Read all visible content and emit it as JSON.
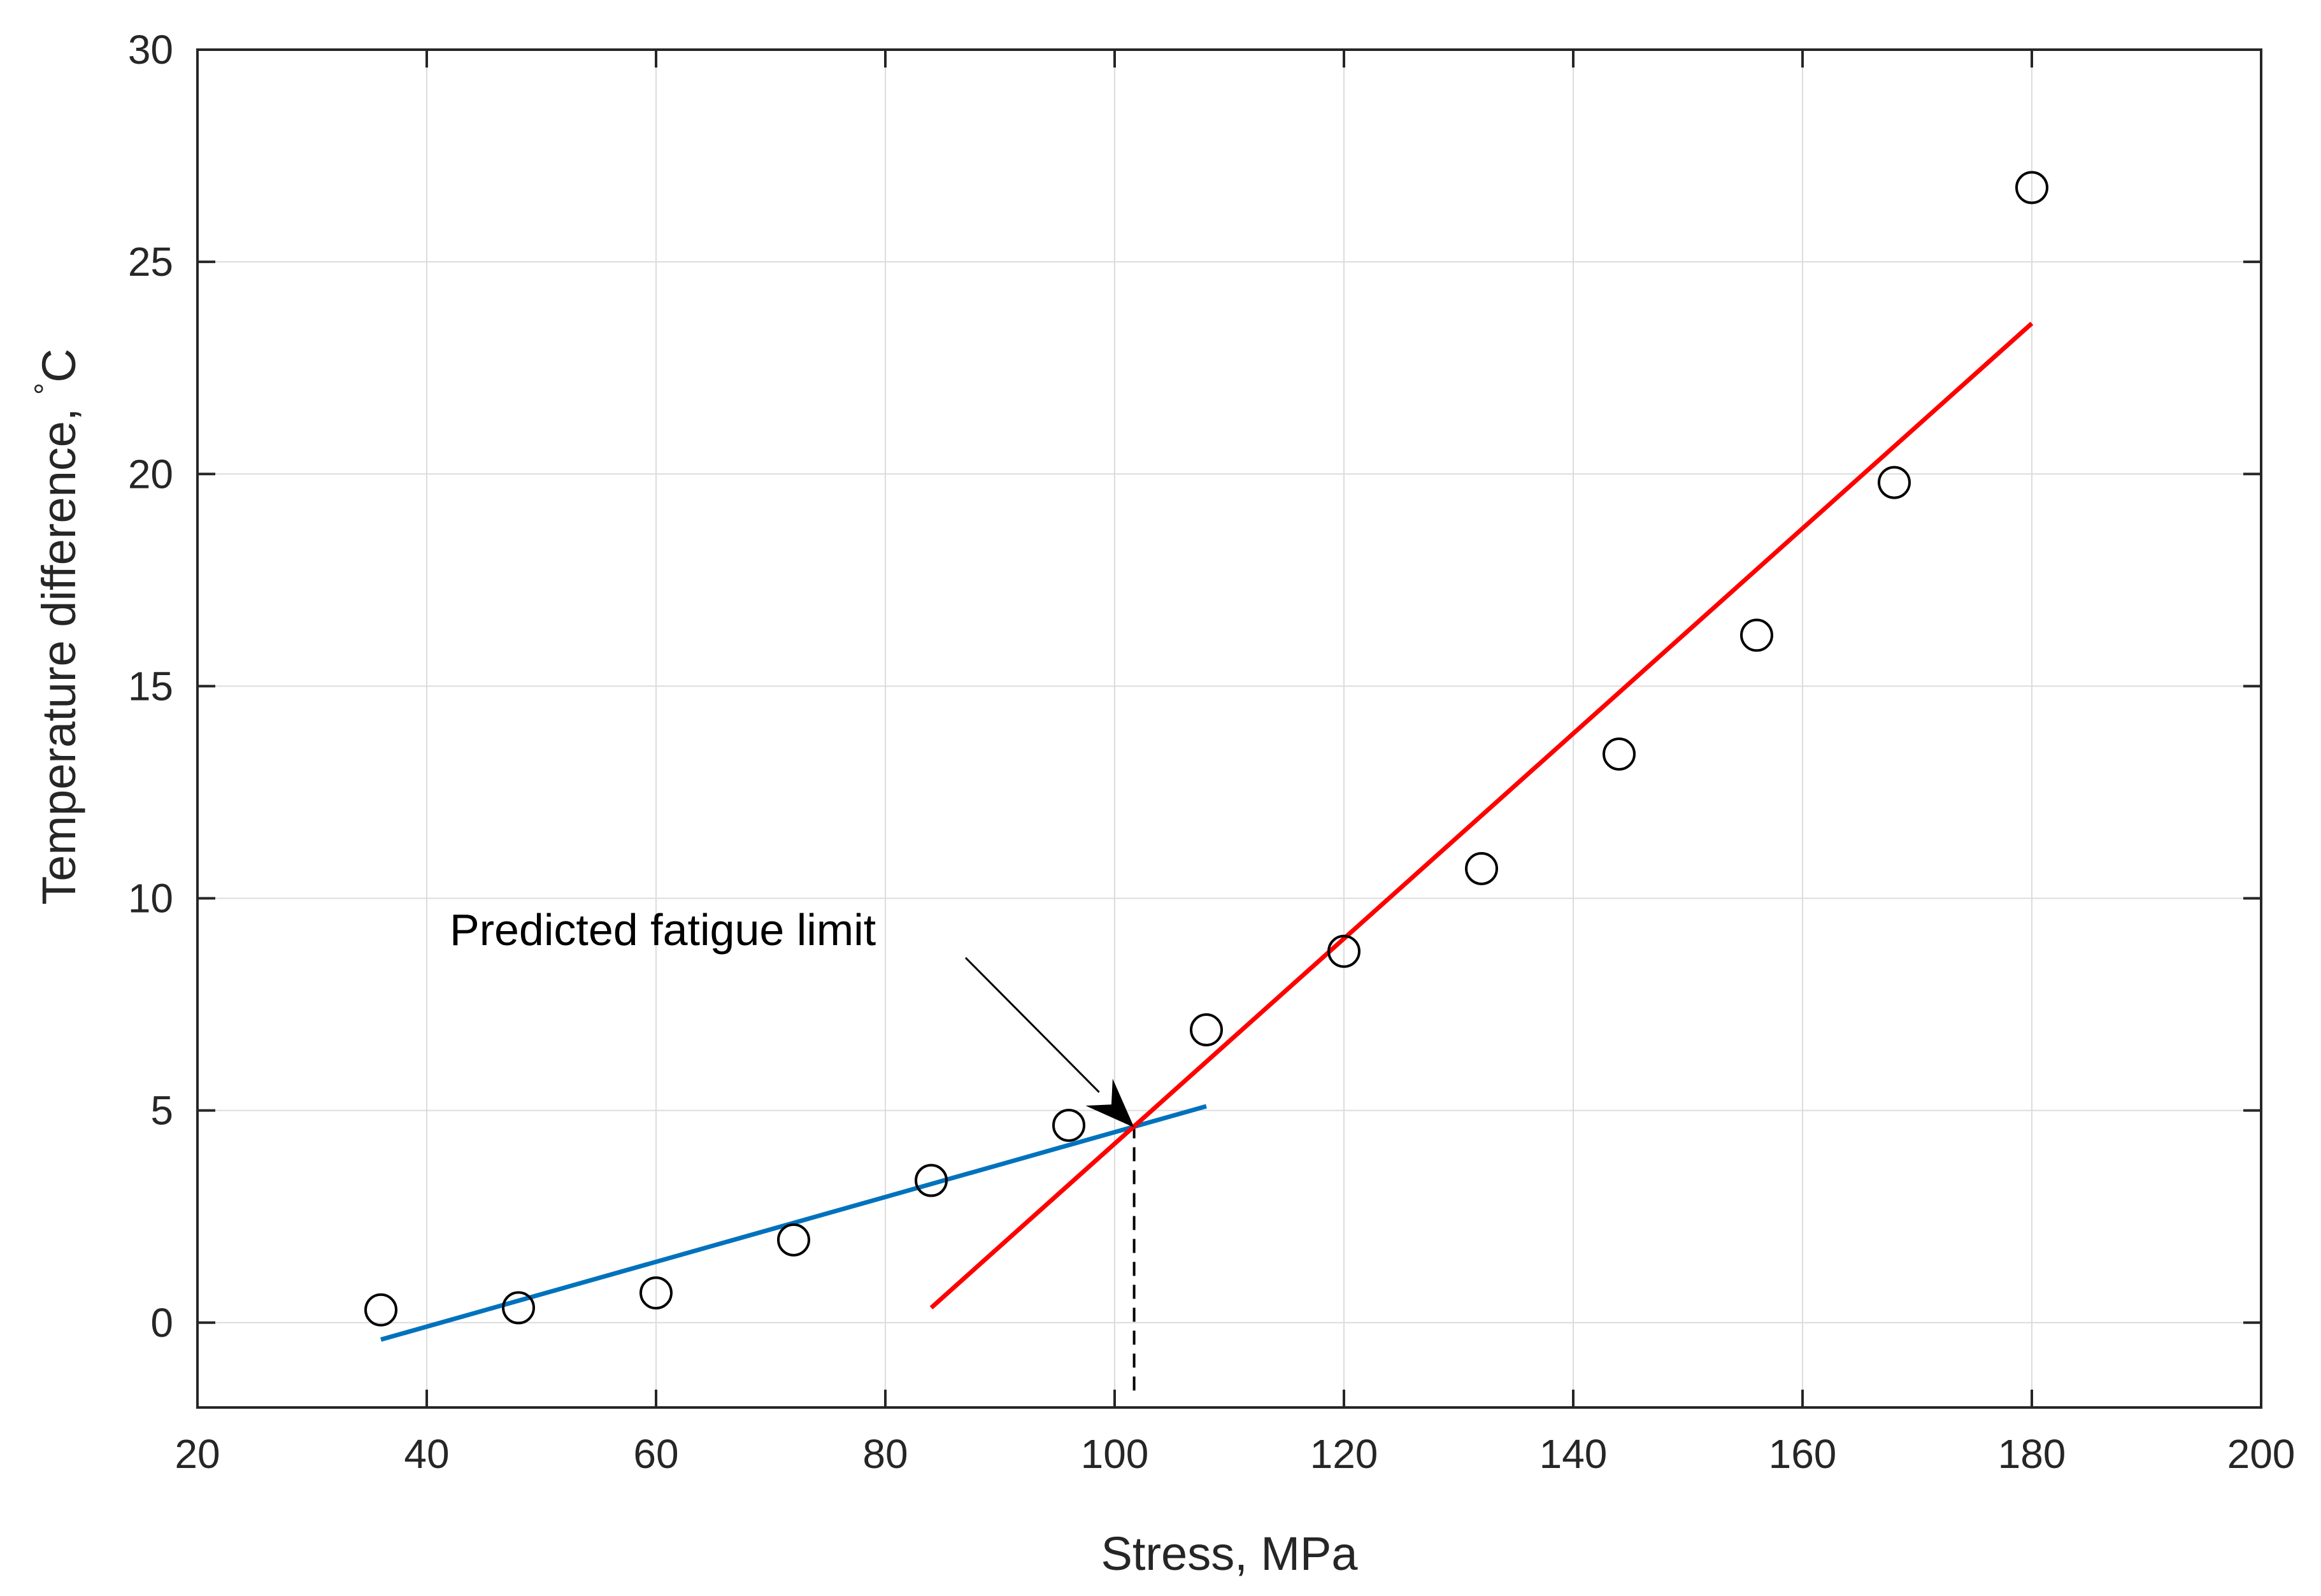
{
  "chart_data": {
    "type": "scatter",
    "title": "",
    "xlabel": "Stress, MPa",
    "ylabel": "Temperature difference, ",
    "ylabel_unit": "C",
    "ylabel_degree": "°",
    "xlim": [
      20,
      200
    ],
    "ylim": [
      -2,
      30
    ],
    "xticks": [
      "20",
      "40",
      "60",
      "80",
      "100",
      "120",
      "140",
      "160",
      "180",
      "200"
    ],
    "yticks": [
      "0",
      "5",
      "10",
      "15",
      "20",
      "25",
      "30"
    ],
    "grid": true,
    "series": [
      {
        "kind": "markers",
        "marker": "circle",
        "color": "#000000",
        "x": [
          36,
          48,
          60,
          72,
          84,
          96,
          108,
          120,
          132,
          144,
          156,
          168,
          180
        ],
        "y": [
          0.3,
          0.35,
          0.7,
          1.95,
          3.35,
          4.65,
          6.9,
          8.75,
          10.7,
          13.4,
          16.2,
          19.8,
          26.75
        ]
      },
      {
        "kind": "line",
        "color": "#0072BD",
        "x": [
          36,
          108
        ],
        "y": [
          -0.4,
          5.1
        ]
      },
      {
        "kind": "line",
        "color": "#FF0000",
        "x": [
          84,
          180
        ],
        "y": [
          0.35,
          23.55
        ]
      }
    ],
    "annotation": {
      "text": "Predicted fatigue limit",
      "text_at": [
        42,
        8.9
      ],
      "arrow_from": [
        87,
        8.6
      ],
      "arrow_to": [
        101.7,
        4.6
      ],
      "dashed_x": 101.7,
      "dashed_y_range": [
        -1.6,
        4.6
      ]
    }
  }
}
